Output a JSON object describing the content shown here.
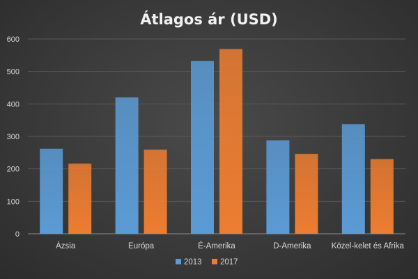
{
  "chart_data": {
    "type": "bar",
    "title": "Átlagos ár (USD)",
    "categories": [
      "Ázsia",
      "Európa",
      "É-Amerika",
      "D-Amerika",
      "Közel-kelet és Afrika"
    ],
    "series": [
      {
        "name": "2013",
        "values": [
          262,
          420,
          532,
          288,
          338
        ],
        "color": "#5b9bd5"
      },
      {
        "name": "2017",
        "values": [
          216,
          259,
          569,
          246,
          230
        ],
        "color": "#ed7d31"
      }
    ],
    "ylim": [
      0,
      600
    ],
    "yticks": [
      0,
      100,
      200,
      300,
      400,
      500,
      600
    ],
    "grid": true,
    "legend": "bottom"
  }
}
